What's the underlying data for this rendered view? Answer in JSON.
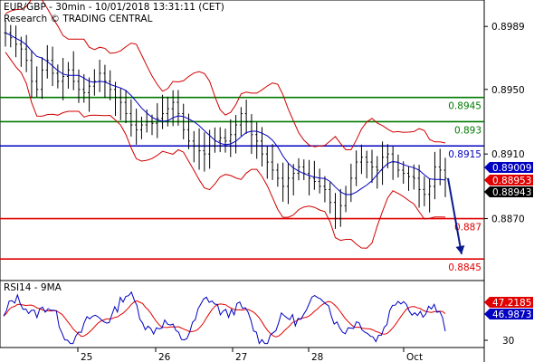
{
  "header": {
    "line1": "EUR/GBP - 30min - 10/01/2018 13:31:11 (CET)",
    "line2": "Research © TRADING CENTRAL"
  },
  "rsi_label": "RSI14 - 9MA",
  "colors": {
    "support": "#e00000",
    "resistance_green": "#007a00",
    "pivot_blue": "#0000c0",
    "bollinger": "#d00000",
    "ma": "#0000c0",
    "candles": "#000000",
    "arrow": "#0a1a8c",
    "badge_blue": "#0000c0",
    "badge_red": "#e00000",
    "badge_black": "#000000"
  },
  "chart_data": [
    {
      "type": "line",
      "name": "price",
      "x_labels": [
        "25",
        "26",
        "27",
        "28",
        "Oct"
      ],
      "y_ticks": [
        0.8989,
        0.895,
        0.891,
        0.887
      ],
      "ylim": [
        0.8835,
        0.9002
      ],
      "levels": [
        {
          "value": 0.8945,
          "label": "0.8945",
          "color": "green"
        },
        {
          "value": 0.893,
          "label": "0.893",
          "color": "green"
        },
        {
          "value": 0.8915,
          "label": "0.8915",
          "color": "blue"
        },
        {
          "value": 0.887,
          "label": "0.887",
          "color": "red"
        },
        {
          "value": 0.8845,
          "label": "0.8845",
          "color": "red"
        }
      ],
      "price_badges": [
        {
          "value": 0.89009,
          "label": "0.89009",
          "color": "blue"
        },
        {
          "value": 0.88953,
          "label": "0.88953",
          "color": "red"
        },
        {
          "value": 0.88943,
          "label": "0.88943",
          "color": "black"
        }
      ],
      "close_series": [
        0.8985,
        0.8982,
        0.8978,
        0.8975,
        0.8968,
        0.8955,
        0.895,
        0.8962,
        0.8968,
        0.896,
        0.8955,
        0.8958,
        0.8962,
        0.8955,
        0.895,
        0.8948,
        0.8952,
        0.8955,
        0.896,
        0.8955,
        0.895,
        0.8945,
        0.8942,
        0.8935,
        0.8928,
        0.8925,
        0.8928,
        0.893,
        0.8929,
        0.8932,
        0.8935,
        0.8938,
        0.8942,
        0.8935,
        0.8925,
        0.8918,
        0.8915,
        0.8912,
        0.891,
        0.8915,
        0.8918,
        0.892,
        0.8918,
        0.8922,
        0.8928,
        0.8935,
        0.893,
        0.8922,
        0.8918,
        0.891,
        0.8905,
        0.89,
        0.8895,
        0.889,
        0.8895,
        0.8898,
        0.8902,
        0.8898,
        0.8895,
        0.8893,
        0.889,
        0.8888,
        0.888,
        0.887,
        0.8878,
        0.8885,
        0.8895,
        0.8905,
        0.8908,
        0.8905,
        0.8902,
        0.89,
        0.8908,
        0.891,
        0.8905,
        0.89,
        0.8898,
        0.8896,
        0.8895,
        0.8888,
        0.8885,
        0.889,
        0.8902,
        0.89,
        0.8895
      ],
      "projection": {
        "from": 0.8895,
        "to": 0.8848
      }
    },
    {
      "type": "line",
      "name": "RSI14 - 9MA",
      "y_ticks": [
        30
      ],
      "ylim": [
        25,
        80
      ],
      "badges": [
        {
          "value": 47.2185,
          "label": "47.2185",
          "color": "red"
        },
        {
          "value": 46.9873,
          "label": "46.9873",
          "color": "blue"
        }
      ]
    }
  ]
}
